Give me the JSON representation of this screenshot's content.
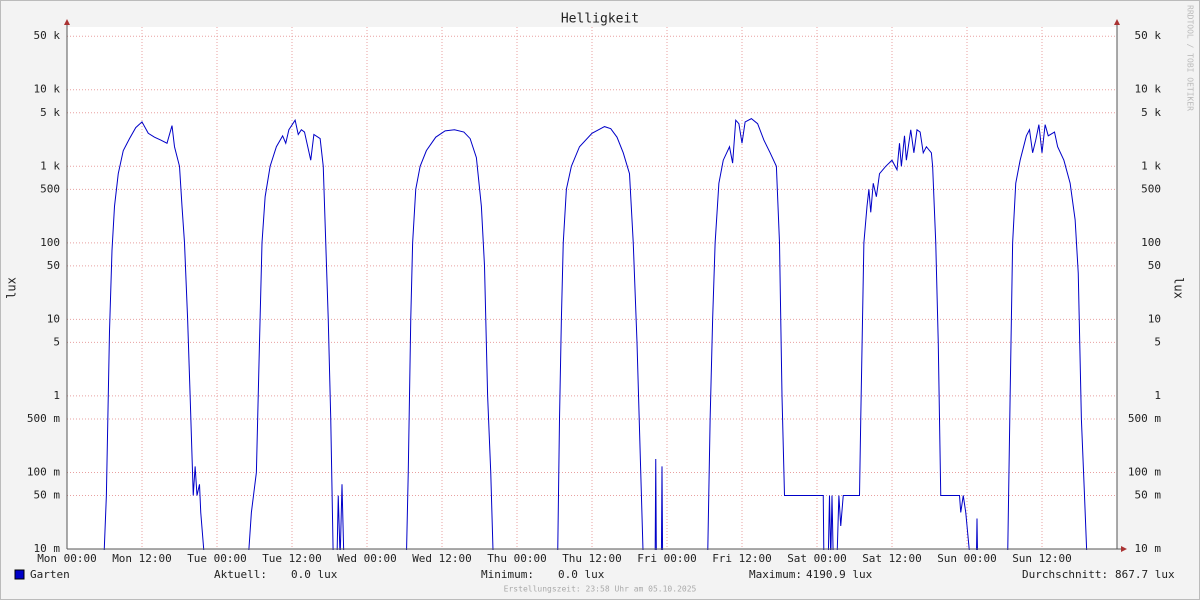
{
  "chart_data": {
    "type": "line",
    "title": "Helligkeit",
    "ylabel": "lux",
    "watermark": "RRDTOOL / TOBI OETIKER",
    "footer": "Erstellungszeit: 23:58 Uhr am 05.10.2025",
    "log_y": true,
    "grid": true,
    "xlim": [
      0,
      168
    ],
    "ylim": [
      0.01,
      66000
    ],
    "xticks": [
      {
        "value": 0,
        "label": "Mon 00:00"
      },
      {
        "value": 12,
        "label": "Mon 12:00"
      },
      {
        "value": 24,
        "label": "Tue 00:00"
      },
      {
        "value": 36,
        "label": "Tue 12:00"
      },
      {
        "value": 48,
        "label": "Wed 00:00"
      },
      {
        "value": 60,
        "label": "Wed 12:00"
      },
      {
        "value": 72,
        "label": "Thu 00:00"
      },
      {
        "value": 84,
        "label": "Thu 12:00"
      },
      {
        "value": 96,
        "label": "Fri 00:00"
      },
      {
        "value": 108,
        "label": "Fri 12:00"
      },
      {
        "value": 120,
        "label": "Sat 00:00"
      },
      {
        "value": 132,
        "label": "Sat 12:00"
      },
      {
        "value": 144,
        "label": "Sun 00:00"
      },
      {
        "value": 156,
        "label": "Sun 12:00"
      }
    ],
    "yticks": [
      {
        "value": 0.01,
        "label": "10 m"
      },
      {
        "value": 0.05,
        "label": "50 m"
      },
      {
        "value": 0.1,
        "label": "100 m"
      },
      {
        "value": 0.5,
        "label": "500 m"
      },
      1,
      5,
      10,
      50,
      100,
      500,
      {
        "value": 1000,
        "label": "1 k"
      },
      {
        "value": 5000,
        "label": "5 k"
      },
      {
        "value": 10000,
        "label": "10 k"
      },
      {
        "value": 50000,
        "label": "50 k"
      }
    ],
    "x": [
      0,
      5.9,
      6.3,
      6.8,
      7.2,
      7.6,
      8.2,
      9,
      10,
      11,
      12,
      13,
      14,
      15,
      16,
      16.8,
      17.2,
      18,
      18.4,
      18.8,
      19.3,
      19.7,
      20.2,
      20.5,
      20.8,
      21.2,
      21.4,
      22,
      29,
      29.5,
      30.3,
      30.8,
      31.2,
      31.7,
      32.5,
      33.5,
      34.5,
      35,
      35.5,
      36.5,
      37,
      37.5,
      38,
      39,
      39.5,
      40.5,
      41,
      41.4,
      41.8,
      42.2,
      42.6,
      43.2,
      43.4,
      43.7,
      44,
      44.3,
      54.3,
      54.6,
      55,
      55.3,
      55.8,
      56.5,
      57.5,
      59,
      60.5,
      62,
      63.5,
      64.5,
      65.5,
      66.3,
      66.8,
      67.3,
      67.8,
      68.2,
      78.5,
      78.8,
      79.1,
      79.4,
      79.9,
      80.7,
      82,
      84,
      86,
      87,
      88,
      89,
      90,
      90.6,
      91.2,
      91.8,
      92.2,
      94.1,
      94.2,
      94.3,
      95.1,
      95.2,
      95.3,
      102.5,
      102.9,
      103.3,
      103.7,
      104.3,
      105,
      106,
      106.5,
      107,
      107.5,
      108,
      108.5,
      109.5,
      110.5,
      111.5,
      112.5,
      113.5,
      114,
      114.4,
      114.8,
      121,
      121.1,
      121.8,
      122,
      122.2,
      122.4,
      122.6,
      123.2,
      123.5,
      123.8,
      124.2,
      126.8,
      127,
      127.5,
      128,
      128.3,
      128.6,
      129,
      129.5,
      130,
      131,
      132,
      132.8,
      133.2,
      133.5,
      134,
      134.3,
      135,
      135.5,
      136,
      136.5,
      137,
      137.5,
      138.3,
      138.5,
      139,
      139.4,
      139.8,
      142.8,
      143,
      143.4,
      143.8,
      144.5,
      145.5,
      145.6,
      145.7,
      150.5,
      150.9,
      151.3,
      151.8,
      152.5,
      153.5,
      154,
      154.5,
      155,
      155.5,
      156,
      156.5,
      157,
      158,
      158.5,
      159.5,
      160.5,
      161.3,
      161.8,
      162.3,
      162.8,
      163.2,
      168
    ],
    "series": [
      {
        "name": "Garten",
        "color": "#0000c8",
        "values": [
          0,
          0,
          0.05,
          7,
          80,
          300,
          800,
          1600,
          2300,
          3200,
          3800,
          2700,
          2400,
          2200,
          2000,
          3400,
          1800,
          1000,
          300,
          100,
          10,
          1,
          0.05,
          0.12,
          0.05,
          0.07,
          0.03,
          0,
          0,
          0.03,
          0.1,
          5,
          100,
          400,
          1000,
          1800,
          2500,
          2000,
          3000,
          4000,
          2600,
          3000,
          2800,
          1200,
          2600,
          2300,
          1000,
          100,
          10,
          0.5,
          0,
          0,
          0.05,
          0,
          0.07,
          0,
          0,
          0.1,
          10,
          100,
          500,
          1000,
          1600,
          2400,
          2900,
          3000,
          2800,
          2300,
          1300,
          300,
          50,
          1,
          0.1,
          0,
          0,
          0.5,
          10,
          100,
          500,
          1000,
          1800,
          2700,
          3300,
          3100,
          2400,
          1500,
          800,
          100,
          5,
          0.1,
          0,
          0,
          0.15,
          0,
          0,
          0.12,
          0,
          0,
          0.5,
          10,
          100,
          600,
          1200,
          1800,
          1100,
          4000,
          3600,
          2000,
          3800,
          4190.9,
          3600,
          2200,
          1500,
          1000,
          100,
          1,
          0.05,
          0.05,
          0,
          0,
          0.05,
          0,
          0.05,
          0,
          0,
          0.05,
          0.02,
          0.05,
          0.05,
          0.5,
          100,
          300,
          500,
          250,
          600,
          400,
          800,
          1000,
          1200,
          900,
          2000,
          1000,
          2500,
          1200,
          3000,
          1500,
          3000,
          2800,
          1500,
          1800,
          1500,
          1000,
          100,
          5,
          0.05,
          0.05,
          0.03,
          0.05,
          0.03,
          0,
          0,
          0.025,
          0,
          0,
          1,
          100,
          600,
          1200,
          2500,
          3000,
          1500,
          2200,
          3500,
          1500,
          3500,
          2500,
          2800,
          1800,
          1200,
          600,
          200,
          40,
          0.5,
          0.05,
          0,
          0
        ]
      }
    ],
    "stats": [
      {
        "label": "Aktuell:",
        "value": "0.0 lux"
      },
      {
        "label": "Minimum:",
        "value": "0.0 lux"
      },
      {
        "label": "Maximum:",
        "value": "4190.9 lux"
      },
      {
        "label": "Durchschnitt:",
        "value": "867.7 lux"
      }
    ]
  }
}
